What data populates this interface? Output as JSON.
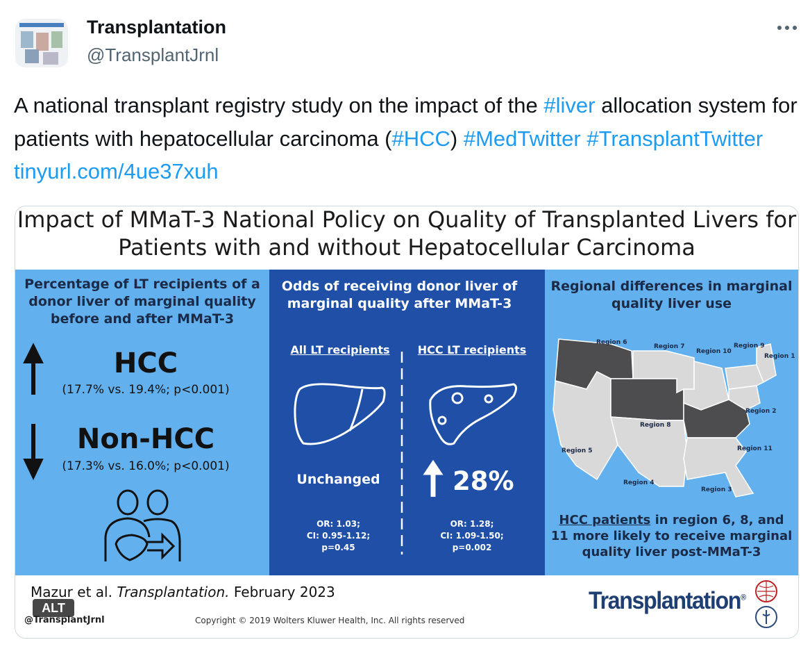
{
  "tweet": {
    "author_name": "Transplantation",
    "handle": "@TransplantJrnl",
    "text": [
      {
        "kind": "plain",
        "text": "A national transplant registry study on the impact of the"
      },
      {
        "kind": "link",
        "text": "#liver"
      },
      {
        "kind": "plain",
        "text": "allocation system for patients with hepatocellular carcinoma ("
      },
      {
        "kind": "link",
        "text": "#HCC"
      },
      {
        "kind": "plain",
        "text": ")"
      },
      {
        "kind": "link",
        "text": "#MedTwitter"
      },
      {
        "kind": "link",
        "text": "#TransplantTwitter"
      },
      {
        "kind": "link",
        "text": "tinyurl.com/4ue37xuh"
      }
    ]
  },
  "infographic": {
    "title_lines": [
      "Impact of MMaT-3 National Policy on Quality of Transplanted Livers for",
      "Patients with and without Hepatocellular Carcinoma"
    ],
    "left_panel": {
      "heading_lines": [
        "Percentage of LT recipients of a",
        "donor liver of marginal quality",
        "before and after MMaT-3"
      ],
      "hcc_label": "HCC",
      "hcc_stats": "(17.7% vs. 19.4%; p<0.001)",
      "non_hcc_label": "Non-HCC",
      "non_hcc_stats": "(17.3% vs. 16.0%; p<0.001)"
    },
    "middle_panel": {
      "heading_lines": [
        "Odds of receiving donor liver of",
        "marginal quality after MMaT-3"
      ],
      "all": {
        "label": "All LT recipients",
        "result": "Unchanged",
        "stats_lines": [
          "OR: 1.03;",
          "CI: 0.95-1.12;",
          "p=0.45"
        ]
      },
      "hcc": {
        "label": "HCC LT recipients",
        "result": "28%",
        "stats_lines": [
          "OR: 1.28;",
          "CI: 1.09-1.50;",
          "p=0.002"
        ]
      }
    },
    "right_panel": {
      "heading_lines": [
        "Regional differences in marginal",
        "quality liver use"
      ],
      "regions": [
        "Region 6",
        "Region 7",
        "Region 10",
        "Region 9",
        "Region 1",
        "Region 2",
        "Region 8",
        "Region 11",
        "Region 5",
        "Region 4",
        "Region 3"
      ],
      "conclusion_underlined": "HCC patients",
      "conclusion_rest": "in region 6, 8, and 11 more likely to receive marginal quality liver post-MMaT-3"
    },
    "footer": {
      "citation_author": "Mazur et al.",
      "citation_journal": "Transplantation.",
      "citation_date": "February 2023",
      "alt_badge": "ALT",
      "watermark": "@TransplantJrnl",
      "copyright": "Copyright © 2019  Wolters Kluwer Health, Inc. All rights reserved",
      "logo": "Transplantation",
      "logo_mark": "®"
    }
  }
}
